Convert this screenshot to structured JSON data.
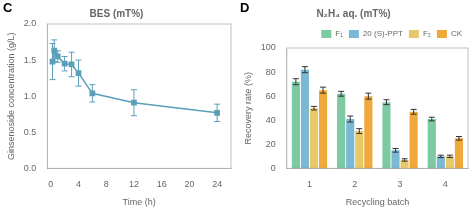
{
  "chart_data": [
    {
      "type": "line",
      "title": "BES (mT%)",
      "annotations": [
        "C"
      ],
      "xlabel": "Time (h)",
      "ylabel": "Ginsenoside concentration (g/L)",
      "x": [
        0.25,
        0.5,
        1,
        2,
        3,
        4,
        6,
        12,
        24
      ],
      "series": [
        {
          "color": "#5b9fba",
          "marker": "square",
          "line_style": "solid",
          "values": [
            1.48,
            1.63,
            1.55,
            1.45,
            1.44,
            1.32,
            1.04,
            0.91,
            0.77
          ],
          "yerr": [
            0.25,
            0.15,
            0.08,
            0.1,
            0.17,
            0.18,
            0.12,
            0.18,
            0.12
          ]
        }
      ],
      "xlim": [
        -0.5,
        26
      ],
      "xticks": [
        0,
        4,
        8,
        12,
        16,
        20,
        24
      ],
      "ylim": [
        0.0,
        2.0
      ],
      "yticks": [
        {
          "value": 0,
          "label": "0.0"
        },
        0.5,
        {
          "value": 1,
          "label": "1.0"
        },
        1.5,
        {
          "value": 2,
          "label": "2.0"
        }
      ],
      "grid": false
    },
    {
      "type": "bar",
      "title": "N₂H₄ aq. (mT%)",
      "annotations": [
        "D"
      ],
      "xlabel": "Recycling batch",
      "ylabel": "Recovery rate (%)",
      "categories": [
        "1",
        "2",
        "3",
        "4"
      ],
      "series": [
        {
          "name": "F₁",
          "color": "#7dc9a2",
          "values": [
            72,
            62,
            55,
            41
          ],
          "yerr": [
            2.5,
            2.0,
            2.0,
            1.5
          ]
        },
        {
          "name": "20 (S)-PPT",
          "color": "#7ab8d4",
          "values": [
            82,
            41,
            15,
            10
          ],
          "yerr": [
            2.5,
            2.5,
            1.5,
            1.0
          ]
        },
        {
          "name": "F₂",
          "color": "#e8c96a",
          "values": [
            50,
            31,
            7,
            10
          ],
          "yerr": [
            1.5,
            2.0,
            1.0,
            1.0
          ]
        },
        {
          "name": "CK",
          "color": "#f0a83a",
          "values": [
            65,
            60,
            47,
            25
          ],
          "yerr": [
            2.5,
            2.5,
            2.0,
            1.5
          ]
        }
      ],
      "ylim": [
        0,
        100
      ],
      "yticks": [
        0,
        20,
        40,
        60,
        80,
        100
      ],
      "grid": false,
      "legend": "upper right"
    }
  ]
}
